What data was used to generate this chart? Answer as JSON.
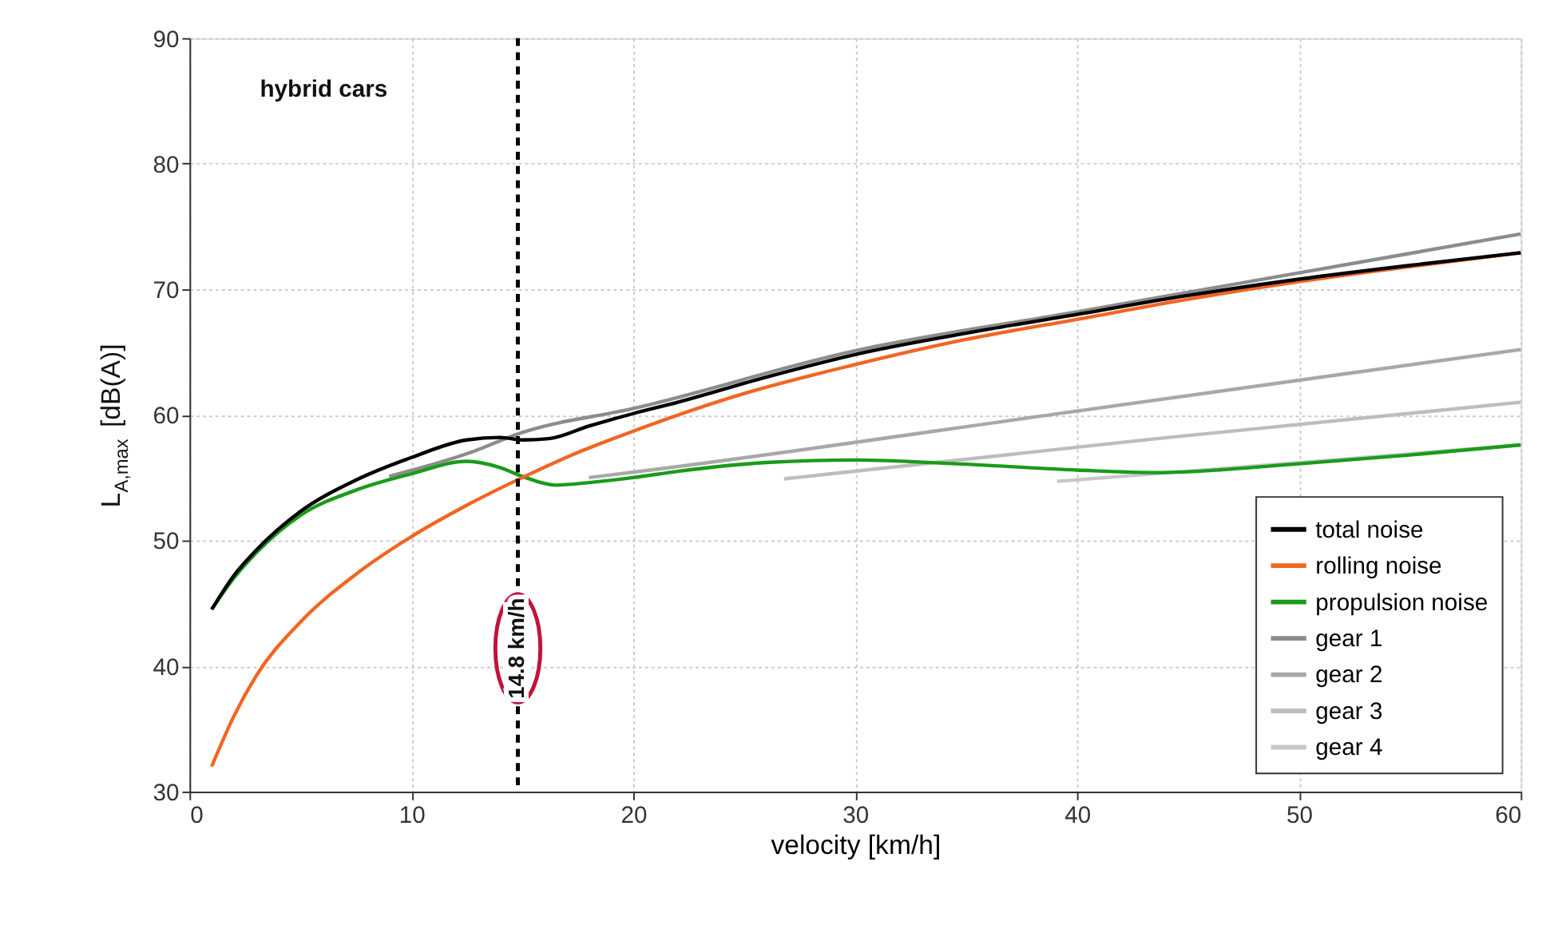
{
  "chart_data": {
    "type": "line",
    "xlabel": "velocity [km/h]",
    "ylabel": "L$_{A,max}$ [dB(A)]",
    "xlim": [
      0,
      60
    ],
    "xticks": [
      0,
      10,
      20,
      30,
      40,
      50,
      60
    ],
    "ylim": [
      30,
      90
    ],
    "yticks": [
      30,
      40,
      50,
      60,
      70,
      80,
      90
    ],
    "grid": true,
    "legend": "bottom right",
    "annotations": [
      "hybrid cars"
    ],
    "ref_lines": [
      {
        "axis": "x",
        "value": 14.8,
        "label": "14.8 km/h",
        "color": "#000000",
        "line_style": "dashed"
      }
    ],
    "series": [
      {
        "name": "total noise",
        "color": "#000000",
        "x": [
          1,
          2,
          3,
          5,
          7.5,
          10,
          12.5,
          14,
          15,
          16.2,
          18,
          20,
          22,
          26,
          30,
          35,
          40,
          45,
          50,
          55,
          60
        ],
        "values": [
          44.5,
          47.2,
          49.2,
          52.3,
          54.8,
          56.6,
          58.0,
          58.2,
          58.0,
          58.1,
          59.1,
          60.1,
          61.0,
          63.0,
          64.8,
          66.5,
          68.0,
          69.5,
          70.8,
          71.9,
          72.9
        ]
      },
      {
        "name": "rolling noise",
        "color": "#f26522",
        "x": [
          1,
          2,
          3,
          5,
          7.5,
          10,
          12.5,
          15,
          17.5,
          20,
          25,
          30,
          35,
          40,
          45,
          50,
          55,
          60
        ],
        "values": [
          32.0,
          36.0,
          39.2,
          43.5,
          47.3,
          50.3,
          52.8,
          55.0,
          57.0,
          58.7,
          61.7,
          64.0,
          66.0,
          67.6,
          69.2,
          70.6,
          71.8,
          72.9
        ]
      },
      {
        "name": "propulsion noise",
        "color": "#1a9b1a",
        "x": [
          1,
          2,
          3,
          5,
          7.5,
          10,
          12.5,
          14,
          15,
          16.5,
          18,
          20,
          22,
          26,
          30,
          34.6,
          40,
          43.6,
          50,
          55,
          60
        ],
        "values": [
          44.5,
          47.0,
          49.0,
          52.0,
          54.0,
          55.3,
          56.3,
          55.8,
          55.1,
          54.4,
          54.6,
          55.0,
          55.5,
          56.2,
          56.4,
          56.1,
          55.6,
          55.4,
          56.1,
          56.8,
          57.6
        ]
      },
      {
        "name": "gear 1",
        "color": "#8c8c8c",
        "x": [
          9,
          12.5,
          15,
          20,
          30,
          40,
          50,
          60
        ],
        "values": [
          55.1,
          56.9,
          58.6,
          60.5,
          65.1,
          68.2,
          71.3,
          74.4
        ]
      },
      {
        "name": "gear 2",
        "color": "#a8a8a8",
        "x": [
          18,
          20.75,
          40,
          60
        ],
        "values": [
          55.0,
          55.6,
          60.3,
          65.2
        ]
      },
      {
        "name": "gear 3",
        "color": "#bdbdbd",
        "x": [
          26.8,
          43.6,
          60
        ],
        "values": [
          54.9,
          58.1,
          61.0
        ]
      },
      {
        "name": "gear 4",
        "color": "#c8c8c8",
        "x": [
          39.1,
          50,
          60
        ],
        "values": [
          54.7,
          56.2,
          57.6
        ]
      }
    ]
  }
}
